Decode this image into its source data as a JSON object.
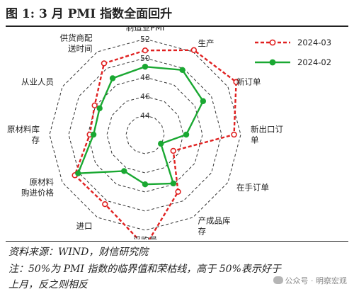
{
  "header": {
    "title": "图 1:  3 月 PMI 指数全面回升"
  },
  "footer": {
    "source": "资料来源：WIND，财信研究院",
    "note_line1": "注：50%为 PMI 指数的临界值和荣枯线，高于 50%表示好于",
    "note_line2": "上月，反之则相反",
    "watermark": "公众号 · 明察宏观"
  },
  "chart_data": {
    "type": "radar",
    "title": "",
    "axes": [
      "制造业PMI",
      "生产",
      "新订单",
      "新出口订单",
      "在手订单",
      "产成品库存",
      "采购量",
      "进口",
      "原材料购进价格",
      "原材料库存",
      "从业人员",
      "供货商配送时间"
    ],
    "axis_label_lines": [
      [
        "制造业PMI"
      ],
      [
        "生产"
      ],
      [
        "新订单"
      ],
      [
        "新出口订",
        "单"
      ],
      [
        "在手订单"
      ],
      [
        "产成品库",
        "存"
      ],
      [
        "采购量"
      ],
      [
        "进口"
      ],
      [
        "原材料",
        "购进价格"
      ],
      [
        "原材料库",
        "存"
      ],
      [
        "从业人员"
      ],
      [
        "供货商配",
        "送时间"
      ]
    ],
    "ticks": [
      44,
      46,
      48,
      50,
      52
    ],
    "tick_labels": [
      "44",
      "46",
      "48",
      "50",
      "52"
    ],
    "range": [
      42,
      52
    ],
    "grid": true,
    "legend_position": "top-right",
    "series": [
      {
        "name": "2024-03",
        "color": "#e02020",
        "style": "dashed-open-circles",
        "values": [
          50.8,
          52.2,
          53.0,
          51.3,
          45.4,
          48.9,
          53.7,
          50.4,
          50.5,
          47.8,
          48.1,
          50.6
        ]
      },
      {
        "name": "2024-02",
        "color": "#1aa832",
        "style": "solid-filled-circles",
        "values": [
          49.1,
          49.8,
          49.0,
          46.3,
          43.9,
          47.9,
          47.2,
          46.4,
          50.1,
          47.4,
          47.5,
          48.8
        ]
      }
    ]
  }
}
